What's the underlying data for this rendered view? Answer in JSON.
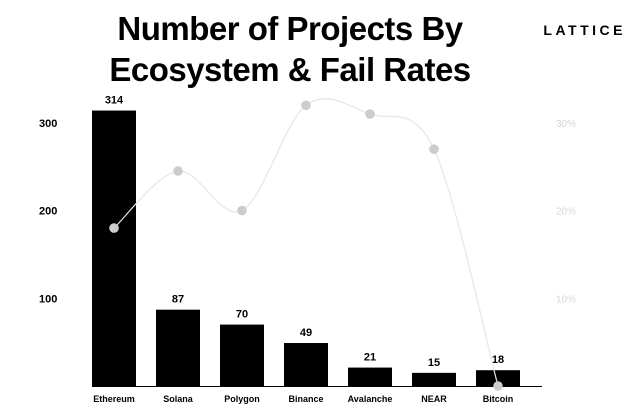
{
  "header": {
    "title_line1": "Number of Projects By",
    "title_line2": "Ecosystem & Fail Rates",
    "logo": "LATTICE"
  },
  "chart_data": {
    "type": "bar",
    "title": "Number of Projects By Ecosystem & Fail Rates",
    "categories": [
      "Ethereum",
      "Solana",
      "Polygon",
      "Binance",
      "Avalanche",
      "NEAR",
      "Bitcoin"
    ],
    "series": [
      {
        "values": [
          314,
          87,
          70,
          49,
          21,
          15,
          18
        ],
        "type": "bar",
        "axis": "left",
        "color": "#000000"
      },
      {
        "values": [
          18,
          24.5,
          20,
          32,
          31,
          27,
          0
        ],
        "type": "line",
        "axis": "right",
        "color": "#cccccc"
      }
    ],
    "y_left": {
      "ticks": [
        100,
        200,
        300
      ],
      "tick_labels": [
        "100",
        "200",
        "300"
      ],
      "range": [
        0,
        334
      ]
    },
    "y_right": {
      "ticks": [
        10,
        20,
        30
      ],
      "tick_labels": [
        "10%",
        "20%",
        "30%"
      ],
      "range": [
        0,
        33.4
      ]
    },
    "data_labels": [
      "314",
      "87",
      "70",
      "49",
      "21",
      "15",
      "18"
    ],
    "grid": false,
    "legend": "none"
  }
}
